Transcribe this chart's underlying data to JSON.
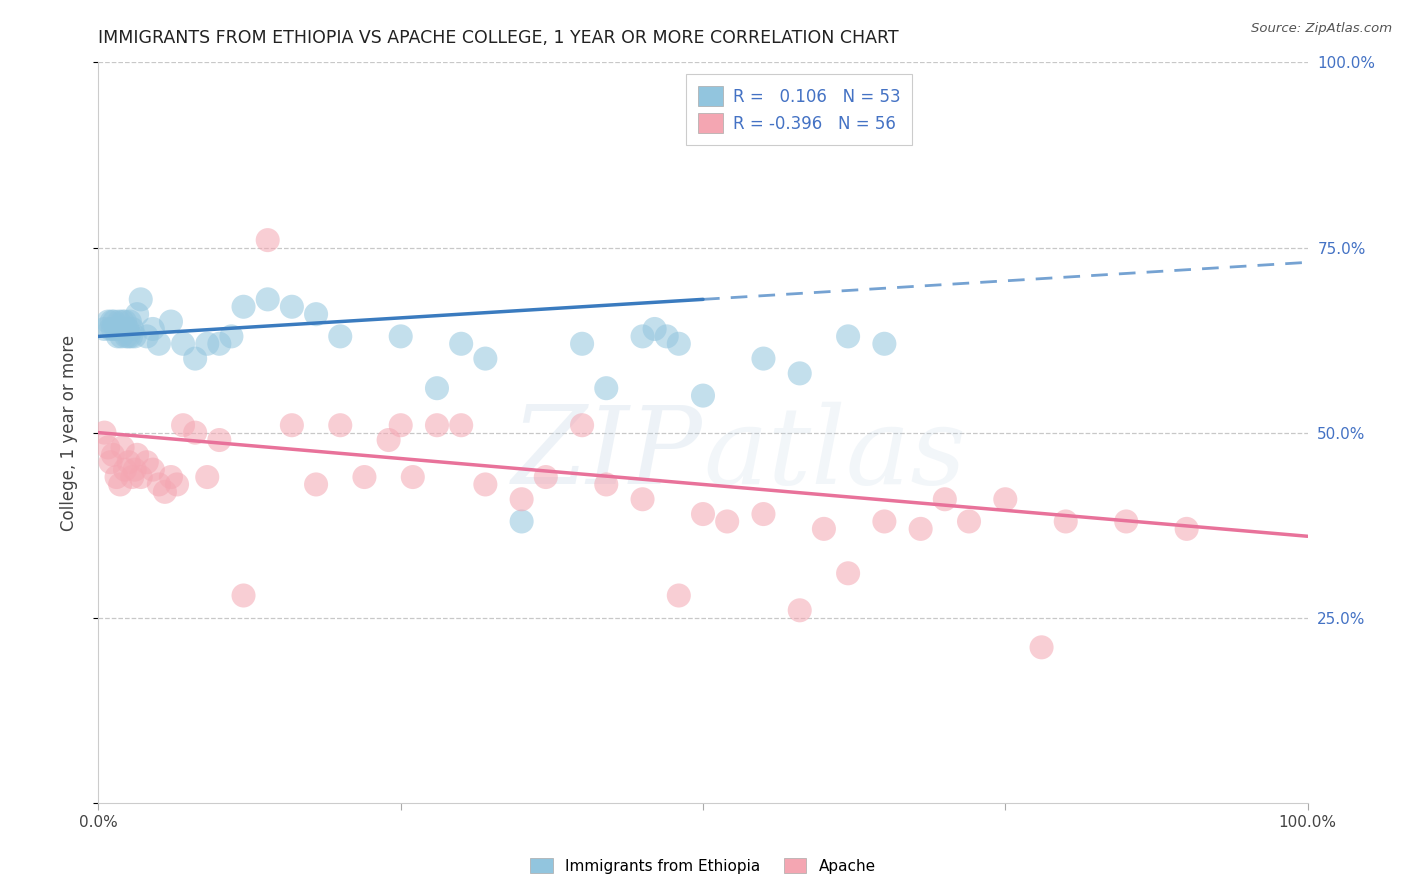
{
  "title": "IMMIGRANTS FROM ETHIOPIA VS APACHE COLLEGE, 1 YEAR OR MORE CORRELATION CHART",
  "source": "Source: ZipAtlas.com",
  "ylabel": "College, 1 year or more",
  "legend_label1": "Immigrants from Ethiopia",
  "legend_label2": "Apache",
  "R1": 0.106,
  "N1": 53,
  "R2": -0.396,
  "N2": 56,
  "blue_scatter_color": "#92c5de",
  "pink_scatter_color": "#f4a6b2",
  "blue_line_color": "#3a7bbf",
  "pink_line_color": "#e8729a",
  "right_axis_color": "#4472c4",
  "title_color": "#222222",
  "source_color": "#555555",
  "grid_color": "#c8c8c8",
  "blue_x": [
    0.5,
    0.8,
    1.0,
    1.1,
    1.2,
    1.3,
    1.5,
    1.6,
    1.7,
    1.8,
    1.9,
    2.0,
    2.1,
    2.2,
    2.3,
    2.4,
    2.5,
    2.6,
    2.7,
    2.8,
    3.0,
    3.2,
    3.5,
    4.0,
    4.5,
    5.0,
    6.0,
    7.0,
    8.0,
    9.0,
    10.0,
    11.0,
    12.0,
    14.0,
    16.0,
    18.0,
    20.0,
    25.0,
    28.0,
    30.0,
    32.0,
    35.0,
    40.0,
    42.0,
    45.0,
    46.0,
    47.0,
    48.0,
    50.0,
    55.0,
    58.0,
    62.0,
    65.0
  ],
  "blue_y": [
    64,
    65,
    64,
    65,
    64,
    65,
    64,
    63,
    65,
    64,
    63,
    65,
    64,
    65,
    63,
    64,
    63,
    65,
    63,
    64,
    63,
    66,
    68,
    63,
    64,
    62,
    65,
    62,
    60,
    62,
    62,
    63,
    67,
    68,
    67,
    66,
    63,
    63,
    56,
    62,
    60,
    38,
    62,
    56,
    63,
    64,
    63,
    62,
    55,
    60,
    58,
    63,
    62
  ],
  "pink_x": [
    0.5,
    0.8,
    1.0,
    1.2,
    1.5,
    1.8,
    2.0,
    2.2,
    2.5,
    2.8,
    3.0,
    3.2,
    3.5,
    4.0,
    4.5,
    5.0,
    5.5,
    6.0,
    6.5,
    7.0,
    8.0,
    9.0,
    10.0,
    12.0,
    14.0,
    16.0,
    18.0,
    20.0,
    22.0,
    24.0,
    25.0,
    26.0,
    28.0,
    30.0,
    32.0,
    35.0,
    37.0,
    40.0,
    42.0,
    45.0,
    48.0,
    50.0,
    52.0,
    55.0,
    58.0,
    60.0,
    62.0,
    65.0,
    68.0,
    70.0,
    72.0,
    75.0,
    78.0,
    80.0,
    85.0,
    90.0
  ],
  "pink_y": [
    50,
    48,
    46,
    47,
    44,
    43,
    48,
    45,
    46,
    44,
    45,
    47,
    44,
    46,
    45,
    43,
    42,
    44,
    43,
    51,
    50,
    44,
    49,
    28,
    76,
    51,
    43,
    51,
    44,
    49,
    51,
    44,
    51,
    51,
    43,
    41,
    44,
    51,
    43,
    41,
    28,
    39,
    38,
    39,
    26,
    37,
    31,
    38,
    37,
    41,
    38,
    41,
    21,
    38,
    38,
    37
  ],
  "xlim": [
    0,
    100
  ],
  "ylim": [
    0,
    100
  ],
  "right_yticks": [
    25,
    50,
    75,
    100
  ],
  "right_ytick_labels": [
    "25.0%",
    "50.0%",
    "75.0%",
    "100.0%"
  ],
  "xticks": [
    0,
    25,
    50,
    75,
    100
  ],
  "xtick_labels": [
    "0.0%",
    "",
    "",
    "",
    "100.0%"
  ],
  "yticks": [
    0,
    25,
    50,
    75,
    100
  ],
  "blue_line_x0": 0,
  "blue_line_x_solid_end": 50,
  "blue_line_x_dash_end": 100,
  "blue_line_y0": 63.0,
  "blue_line_y_end": 73.0,
  "pink_line_y0": 50.0,
  "pink_line_y_end": 36.0
}
